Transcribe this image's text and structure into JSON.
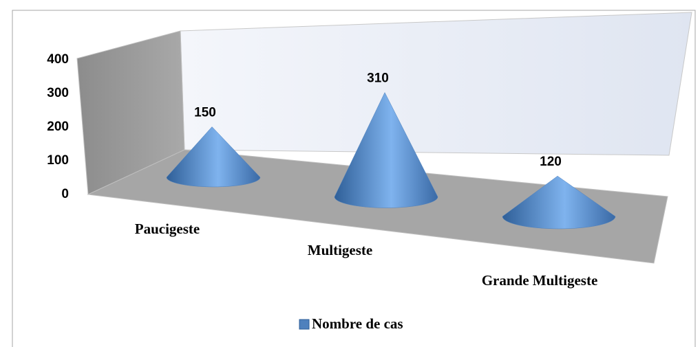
{
  "chart_data": {
    "type": "cone",
    "categories": [
      "Paucigeste",
      "Multigeste",
      "Grande Multigeste"
    ],
    "series": [
      {
        "name": "Nombre de cas",
        "color": "#4f81bd",
        "values": [
          150,
          310,
          120
        ]
      }
    ],
    "ylim": [
      0,
      400
    ],
    "yticks": [
      0,
      100,
      200,
      300,
      400
    ],
    "legend": "bottom"
  }
}
